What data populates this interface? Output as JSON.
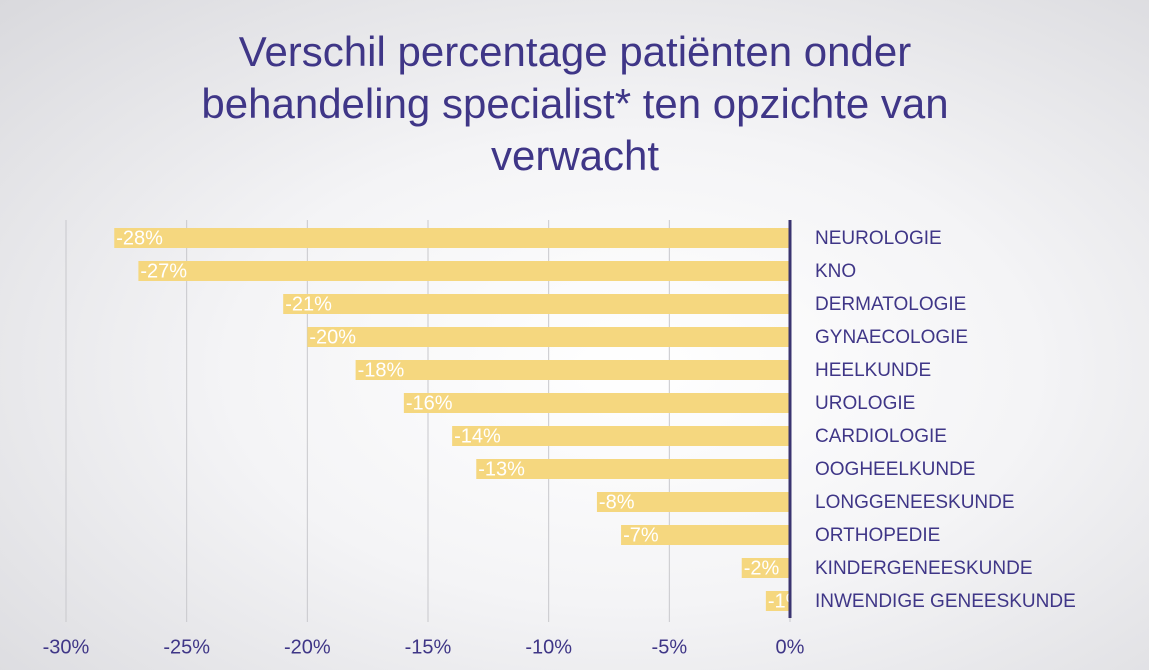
{
  "chart_data": {
    "type": "hbar",
    "title": "Verschil percentage patiënten onder behandeling specialist* ten opzichte van verwacht",
    "categories": [
      "NEUROLOGIE",
      "KNO",
      "DERMATOLOGIE",
      "GYNAECOLOGIE",
      "HEELKUNDE",
      "UROLOGIE",
      "CARDIOLOGIE",
      "OOGHEELKUNDE",
      "LONGGENEESKUNDE",
      "ORTHOPEDIE",
      "KINDERGENEESKUNDE",
      "INWENDIGE GENEESKUNDE"
    ],
    "values": [
      -28,
      -27,
      -21,
      -20,
      -18,
      -16,
      -14,
      -13,
      -8,
      -7,
      -2,
      -1
    ],
    "value_labels": [
      "-28%",
      "-27%",
      "-21%",
      "-20%",
      "-18%",
      "-16%",
      "-14%",
      "-13%",
      "-8%",
      "-7%",
      "-2%",
      "-1%"
    ],
    "color": "#f5d77f",
    "xlim": [
      -30,
      0
    ],
    "xticks": [
      {
        "value": -30,
        "label": "-30%"
      },
      {
        "value": -25,
        "label": "-25%"
      },
      {
        "value": -20,
        "label": "-20%"
      },
      {
        "value": -15,
        "label": "-15%"
      },
      {
        "value": -10,
        "label": "-10%"
      },
      {
        "value": -5,
        "label": "-5%"
      },
      {
        "value": 0,
        "label": "0%"
      }
    ],
    "grid": true
  }
}
